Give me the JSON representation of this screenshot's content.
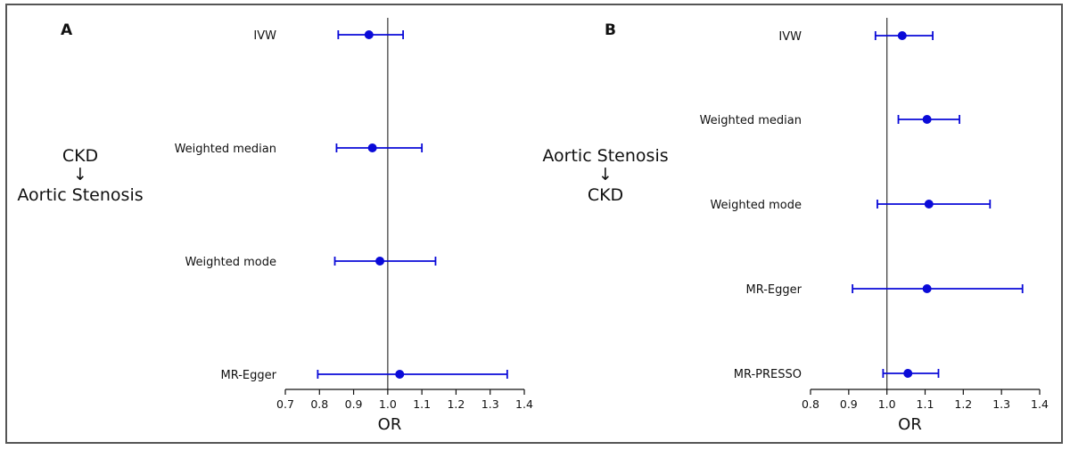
{
  "chart_data": [
    {
      "type": "forest",
      "panel": "A",
      "side_label": [
        "CKD",
        "↓",
        "Aortic Stenosis"
      ],
      "xlabel": "OR",
      "xlim": [
        0.7,
        1.4
      ],
      "xticks": [
        "0.7",
        "0.8",
        "0.9",
        "1.0",
        "1.1",
        "1.2",
        "1.3",
        "1.4"
      ],
      "reference_line": 1.0,
      "point_color": "#0a0ad8",
      "rows": [
        {
          "label": "IVW",
          "or": 0.945,
          "lo": 0.855,
          "hi": 1.045
        },
        {
          "label": "Weighted median",
          "or": 0.955,
          "lo": 0.85,
          "hi": 1.1
        },
        {
          "label": "Weighted mode",
          "or": 0.977,
          "lo": 0.845,
          "hi": 1.14
        },
        {
          "label": "MR-Egger",
          "or": 1.035,
          "lo": 0.795,
          "hi": 1.35
        }
      ]
    },
    {
      "type": "forest",
      "panel": "B",
      "side_label": [
        "Aortic Stenosis",
        "↓",
        "CKD"
      ],
      "xlabel": "OR",
      "xlim": [
        0.8,
        1.4
      ],
      "xticks": [
        "0.8",
        "0.9",
        "1.0",
        "1.1",
        "1.2",
        "1.3",
        "1.4"
      ],
      "reference_line": 1.0,
      "point_color": "#0a0ad8",
      "rows": [
        {
          "label": "IVW",
          "or": 1.04,
          "lo": 0.97,
          "hi": 1.12
        },
        {
          "label": "Weighted median",
          "or": 1.105,
          "lo": 1.03,
          "hi": 1.19
        },
        {
          "label": "Weighted mode",
          "or": 1.11,
          "lo": 0.975,
          "hi": 1.27
        },
        {
          "label": "MR-Egger",
          "or": 1.105,
          "lo": 0.91,
          "hi": 1.355
        },
        {
          "label": "MR-PRESSO",
          "or": 1.055,
          "lo": 0.99,
          "hi": 1.135
        }
      ]
    }
  ]
}
